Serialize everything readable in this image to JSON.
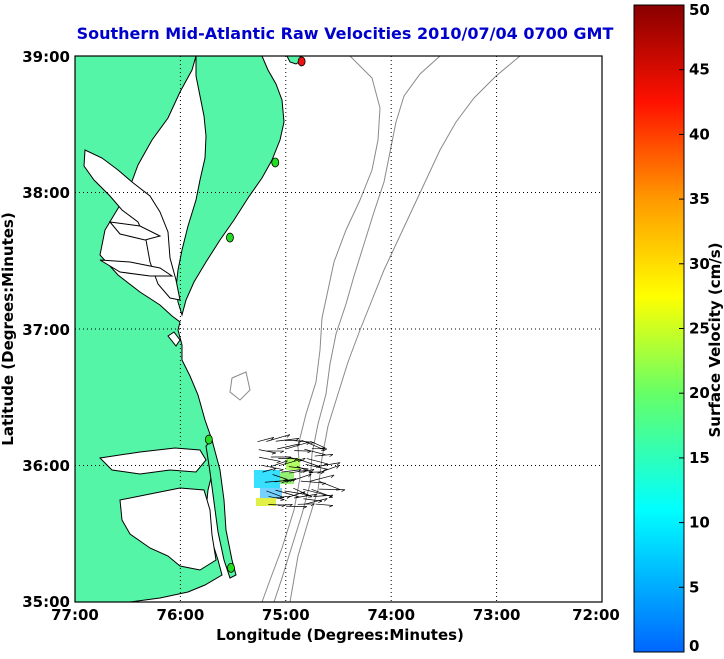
{
  "title": "Southern Mid-Atlantic Raw Velocities 2010/07/04 0700 GMT",
  "colors": {
    "title": "#0000cc",
    "land": "#55f5a8",
    "water": "#ffffff",
    "coast": "#000000",
    "bathymetry": "#8a8a8a",
    "grid": "#000000",
    "station_green": "#22dd22",
    "station_red": "#ee1111"
  },
  "map": {
    "x_axis_label": "Longitude (Degrees:Minutes)",
    "y_axis_label": "Latitude (Degrees:Minutes)",
    "lon_range": [
      -77,
      -72
    ],
    "lat_range": [
      35,
      39
    ],
    "x_ticks": [
      "77:00",
      "76:00",
      "75:00",
      "74:00",
      "73:00",
      "72:00"
    ],
    "y_ticks": [
      "39:00",
      "38:00",
      "37:00",
      "36:00",
      "35:00"
    ],
    "stations": [
      {
        "lon": -74.85,
        "lat": 38.96,
        "color": "red"
      },
      {
        "lon": -75.1,
        "lat": 38.22,
        "color": "green"
      },
      {
        "lon": -75.53,
        "lat": 37.67,
        "color": "green"
      },
      {
        "lon": -75.73,
        "lat": 36.19,
        "color": "green"
      },
      {
        "lon": -75.52,
        "lat": 35.25,
        "color": "green"
      }
    ]
  },
  "colorbar": {
    "label": "Surface Velocity (cm/s)",
    "min": 0,
    "max": 50,
    "ticks": [
      "0",
      "5",
      "10",
      "15",
      "20",
      "25",
      "30",
      "35",
      "40",
      "45",
      "50"
    ]
  }
}
